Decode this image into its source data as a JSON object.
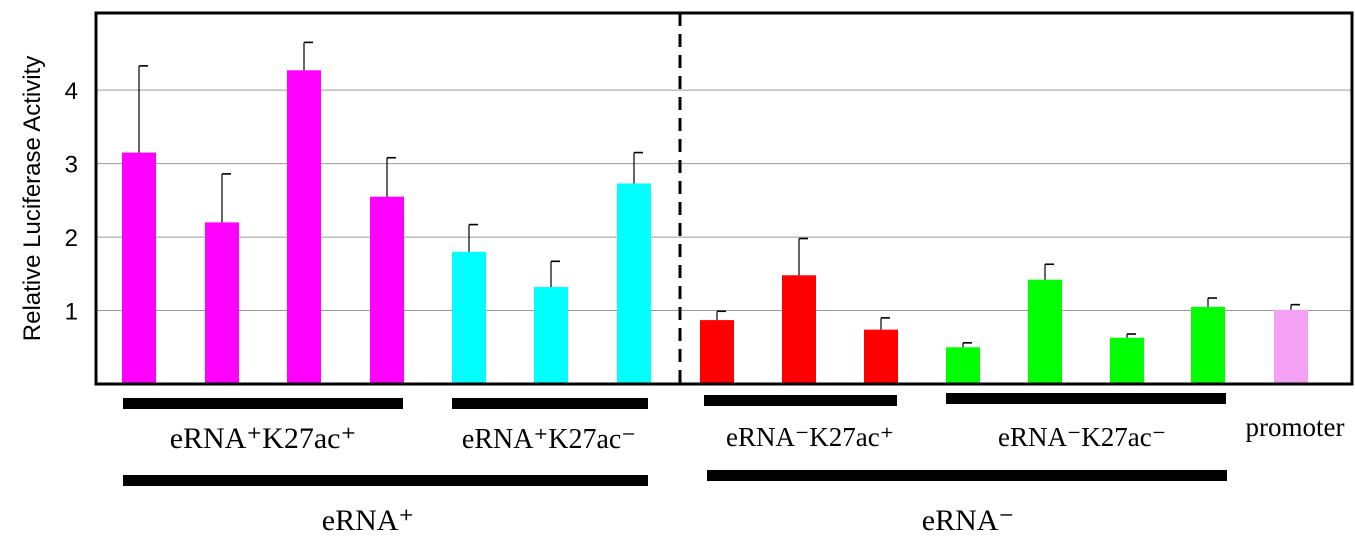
{
  "chart_data": {
    "type": "bar",
    "ylabel": "Relative Luciferase Activity",
    "yticks": [
      1,
      2,
      3,
      4
    ],
    "ylim": [
      0,
      5.05
    ],
    "grid": true,
    "colors": {
      "eRNA+K27ac+": "#ff00ff",
      "eRNA+K27ac-": "#00ffff",
      "eRNA-K27ac+": "#ff0000",
      "eRNA-K27ac-": "#00ff00",
      "promoter": "#f4a0f4"
    },
    "bars": [
      {
        "group": "eRNA+K27ac+",
        "value": 3.15,
        "error": 1.18
      },
      {
        "group": "eRNA+K27ac+",
        "value": 2.2,
        "error": 0.66
      },
      {
        "group": "eRNA+K27ac+",
        "value": 4.27,
        "error": 0.38
      },
      {
        "group": "eRNA+K27ac+",
        "value": 2.55,
        "error": 0.53
      },
      {
        "group": "eRNA+K27ac-",
        "value": 1.8,
        "error": 0.37
      },
      {
        "group": "eRNA+K27ac-",
        "value": 1.32,
        "error": 0.35
      },
      {
        "group": "eRNA+K27ac-",
        "value": 2.73,
        "error": 0.42
      },
      {
        "group": "eRNA-K27ac+",
        "value": 0.87,
        "error": 0.12
      },
      {
        "group": "eRNA-K27ac+",
        "value": 1.48,
        "error": 0.5
      },
      {
        "group": "eRNA-K27ac+",
        "value": 0.74,
        "error": 0.16
      },
      {
        "group": "eRNA-K27ac-",
        "value": 0.5,
        "error": 0.06
      },
      {
        "group": "eRNA-K27ac-",
        "value": 1.42,
        "error": 0.21
      },
      {
        "group": "eRNA-K27ac-",
        "value": 0.63,
        "error": 0.05
      },
      {
        "group": "eRNA-K27ac-",
        "value": 1.05,
        "error": 0.12
      },
      {
        "group": "promoter",
        "value": 1.01,
        "error": 0.07
      }
    ],
    "group_labels": [
      {
        "id": "g1",
        "text": "eRNA⁺K27ac⁺"
      },
      {
        "id": "g2",
        "text": "eRNA⁺K27ac⁻"
      },
      {
        "id": "g3",
        "text": "eRNA⁻K27ac⁺"
      },
      {
        "id": "g4",
        "text": "eRNA⁻K27ac⁻"
      },
      {
        "id": "g5",
        "text": "promoter"
      },
      {
        "id": "super1",
        "text": "eRNA⁺"
      },
      {
        "id": "super2",
        "text": "eRNA⁻"
      }
    ]
  }
}
